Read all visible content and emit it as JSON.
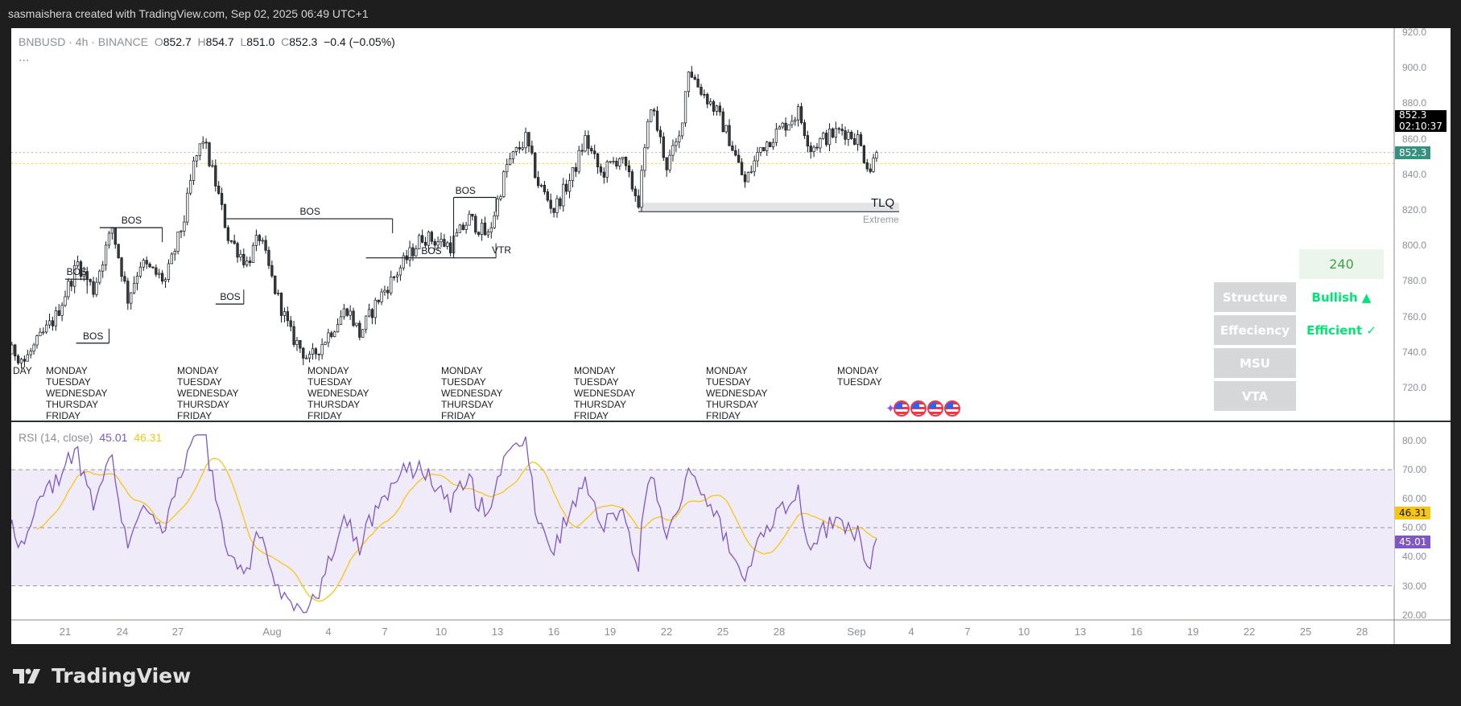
{
  "header": {
    "attribution": "sasmaishera created with TradingView.com, Sep 02, 2025 06:49 UTC+1"
  },
  "legend": {
    "symbol": "BNBUSD · 4h · BINANCE",
    "o_label": "O",
    "o": "852.7",
    "h_label": "H",
    "h": "854.7",
    "l_label": "L",
    "l": "851.0",
    "c_label": "C",
    "c": "852.3",
    "change": "−0.4 (−0.05%)",
    "more": "..."
  },
  "price_axis": {
    "ticks": [
      "920.0",
      "900.0",
      "880.0",
      "860.0",
      "840.0",
      "820.0",
      "800.0",
      "780.0",
      "760.0",
      "740.0",
      "720.0"
    ],
    "last_price": "852.3",
    "countdown": "02:10:37",
    "last_price_tag": "852.3",
    "tag_color": "#37917f"
  },
  "rsi": {
    "label": "RSI (14, close)",
    "value": "45.01",
    "ma_value": "46.31",
    "ticks": [
      "80.00",
      "70.00",
      "60.00",
      "50.00",
      "40.00",
      "30.00",
      "20.00"
    ],
    "color": "#7e57c2",
    "ma_color": "#f7c614",
    "band_color": "#f0ebf8"
  },
  "time_axis": {
    "labels": [
      "21",
      "24",
      "27",
      "Aug",
      "4",
      "7",
      "10",
      "13",
      "16",
      "19",
      "22",
      "25",
      "28",
      "Sep",
      "4",
      "7",
      "10",
      "13",
      "16",
      "19",
      "22",
      "25",
      "28"
    ]
  },
  "weekday_labels": {
    "first": "DAY",
    "week": [
      "MONDAY",
      "TUESDAY",
      "WEDNESDAY",
      "THURSDAY",
      "FRIDAY"
    ],
    "last_week": [
      "MONDAY",
      "TUESDAY"
    ]
  },
  "annotations": {
    "bos": "BOS",
    "vtr": "VTR",
    "tlq": "TLQ",
    "extreme": "Extreme"
  },
  "table": {
    "timeframe": "240",
    "rows": [
      {
        "label": "Structure",
        "value": "Bullish ▲"
      },
      {
        "label": "Effeciency",
        "value": "Efficient ✓"
      },
      {
        "label": "MSU",
        "value": ""
      },
      {
        "label": "VTA",
        "value": ""
      }
    ],
    "accent": "#00e676"
  },
  "events": {
    "icons": [
      "sparkle-icon",
      "us-flag-icon",
      "us-flag-icon",
      "us-flag-icon",
      "us-flag-icon"
    ]
  },
  "footer": {
    "brand": "TradingView"
  },
  "chart_data": {
    "type": "candlestick",
    "symbol": "BNBUSD",
    "interval": "4h",
    "exchange": "BINANCE",
    "ylim": [
      710,
      925
    ],
    "rsi_ylim": [
      15,
      85
    ],
    "rsi_levels": [
      70,
      50,
      30
    ],
    "price_path": [
      [
        "2025-07-18T08:00",
        740
      ],
      [
        "2025-07-18T20:00",
        735
      ],
      [
        "2025-07-20T12:00",
        760
      ],
      [
        "2025-07-21T16:00",
        790
      ],
      [
        "2025-07-22T12:00",
        775
      ],
      [
        "2025-07-23T12:00",
        810
      ],
      [
        "2025-07-24T08:00",
        770
      ],
      [
        "2025-07-25T00:00",
        790
      ],
      [
        "2025-07-26T08:00",
        780
      ],
      [
        "2025-07-27T08:00",
        815
      ],
      [
        "2025-07-27T20:00",
        845
      ],
      [
        "2025-07-28T08:00",
        860
      ],
      [
        "2025-07-29T00:00",
        835
      ],
      [
        "2025-07-29T16:00",
        805
      ],
      [
        "2025-07-30T16:00",
        790
      ],
      [
        "2025-07-31T08:00",
        805
      ],
      [
        "2025-08-01T04:00",
        775
      ],
      [
        "2025-08-02T00:00",
        750
      ],
      [
        "2025-08-03T00:00",
        735
      ],
      [
        "2025-08-04T00:00",
        750
      ],
      [
        "2025-08-05T00:00",
        765
      ],
      [
        "2025-08-05T16:00",
        750
      ],
      [
        "2025-08-06T16:00",
        770
      ],
      [
        "2025-08-08T00:00",
        790
      ],
      [
        "2025-08-09T00:00",
        805
      ],
      [
        "2025-08-10T12:00",
        800
      ],
      [
        "2025-08-11T12:00",
        815
      ],
      [
        "2025-08-12T12:00",
        805
      ],
      [
        "2025-08-13T12:00",
        845
      ],
      [
        "2025-08-14T12:00",
        860
      ],
      [
        "2025-08-15T04:00",
        835
      ],
      [
        "2025-08-16T00:00",
        820
      ],
      [
        "2025-08-17T00:00",
        840
      ],
      [
        "2025-08-17T16:00",
        860
      ],
      [
        "2025-08-18T12:00",
        840
      ],
      [
        "2025-08-19T12:00",
        850
      ],
      [
        "2025-08-20T12:00",
        825
      ],
      [
        "2025-08-21T04:00",
        880
      ],
      [
        "2025-08-22T00:00",
        845
      ],
      [
        "2025-08-22T16:00",
        860
      ],
      [
        "2025-08-23T04:00",
        900
      ],
      [
        "2025-08-23T16:00",
        890
      ],
      [
        "2025-08-24T16:00",
        875
      ],
      [
        "2025-08-25T08:00",
        860
      ],
      [
        "2025-08-26T04:00",
        835
      ],
      [
        "2025-08-27T00:00",
        855
      ],
      [
        "2025-08-28T00:00",
        865
      ],
      [
        "2025-08-29T00:00",
        875
      ],
      [
        "2025-08-29T16:00",
        855
      ],
      [
        "2025-08-30T08:00",
        860
      ],
      [
        "2025-08-31T08:00",
        865
      ],
      [
        "2025-09-01T04:00",
        860
      ],
      [
        "2025-09-01T12:00",
        850
      ],
      [
        "2025-09-01T20:00",
        843
      ],
      [
        "2025-09-02T04:00",
        852.3
      ]
    ],
    "last_close": 852.3,
    "reference_lines": [
      {
        "price": 852.3,
        "style": "dotted",
        "color": "#b2b5be"
      },
      {
        "price": 846,
        "style": "dotted",
        "color": "#f5e000"
      }
    ],
    "bos_levels": [
      {
        "price": 781,
        "from": "2025-07-21T00:00",
        "to": "2025-07-22T04:00"
      },
      {
        "price": 745,
        "from": "2025-07-21T14:00",
        "to": "2025-07-23T08:00"
      },
      {
        "price": 810,
        "from": "2025-07-22T20:00",
        "to": "2025-07-26T04:00"
      },
      {
        "price": 767,
        "from": "2025-07-29T00:00",
        "to": "2025-07-30T12:00"
      },
      {
        "price": 815,
        "from": "2025-07-29T14:00",
        "to": "2025-08-07T10:00"
      },
      {
        "price": 793,
        "from": "2025-08-06T00:00",
        "to": "2025-08-12T22:00"
      },
      {
        "price": 827,
        "from": "2025-08-10T16:00",
        "to": "2025-08-12T22:00"
      }
    ],
    "tlq_zone": {
      "top": 824,
      "bottom": 819,
      "from": "2025-08-20T12:00",
      "to": "2025-09-03T00:00"
    }
  }
}
